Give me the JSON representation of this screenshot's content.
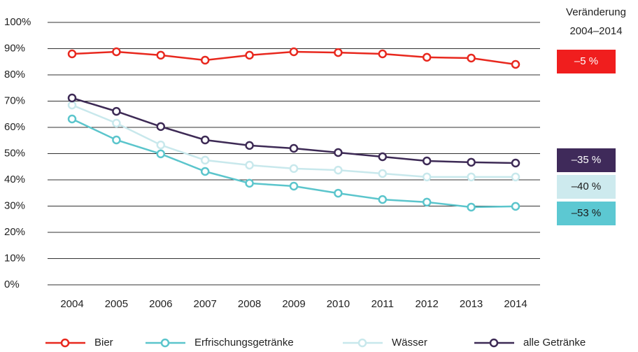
{
  "chart_data": {
    "type": "line",
    "categories": [
      "2004",
      "2005",
      "2006",
      "2007",
      "2008",
      "2009",
      "2010",
      "2011",
      "2012",
      "2013",
      "2014"
    ],
    "ylim": [
      0,
      100
    ],
    "yticks": [
      {
        "value": 0,
        "label": "0%"
      },
      {
        "value": 10,
        "label": "10%"
      },
      {
        "value": 20,
        "label": "20%"
      },
      {
        "value": 30,
        "label": "30%"
      },
      {
        "value": 40,
        "label": "40%"
      },
      {
        "value": 50,
        "label": "50%"
      },
      {
        "value": 60,
        "label": "60%"
      },
      {
        "value": 70,
        "label": "70%"
      },
      {
        "value": 80,
        "label": "80%"
      },
      {
        "value": 90,
        "label": "90%"
      },
      {
        "value": 100,
        "label": "100%"
      }
    ],
    "grid": true,
    "legend": "bottom",
    "annotation_title": [
      "Veränderung",
      "2004–2014"
    ],
    "series": [
      {
        "name": "Bier",
        "color": "#e8281e",
        "change": "–5 %",
        "change_color": "#f01e1e",
        "change_text_color": "#ffffff",
        "values": [
          88,
          88.8,
          87.5,
          85.6,
          87.5,
          88.8,
          88.5,
          88,
          86.7,
          86.4,
          84
        ]
      },
      {
        "name": "Erfrischungsgetränke",
        "color": "#5bc5cc",
        "change": "–53 %",
        "change_color": "#5cc8d2",
        "change_text_color": "#1a1a1a",
        "values": [
          63.2,
          55.2,
          49.9,
          43.2,
          38.7,
          37.6,
          34.9,
          32.5,
          31.5,
          29.6,
          29.9
        ]
      },
      {
        "name": "Wässer",
        "color": "#c8e8ec",
        "change": "–40 %",
        "change_color": "#cdeaee",
        "change_text_color": "#1a1a1a",
        "values": [
          68.5,
          61.6,
          53.3,
          47.5,
          45.6,
          44.3,
          43.7,
          42.4,
          41.1,
          41.1,
          41.1
        ]
      },
      {
        "name": "alle Getränke",
        "color": "#3d2a55",
        "change": "–35 %",
        "change_color": "#3f2a5a",
        "change_text_color": "#ffffff",
        "values": [
          71.2,
          66.1,
          60.3,
          55.2,
          53.1,
          52,
          50.4,
          48.8,
          47.2,
          46.7,
          46.4
        ]
      }
    ]
  }
}
